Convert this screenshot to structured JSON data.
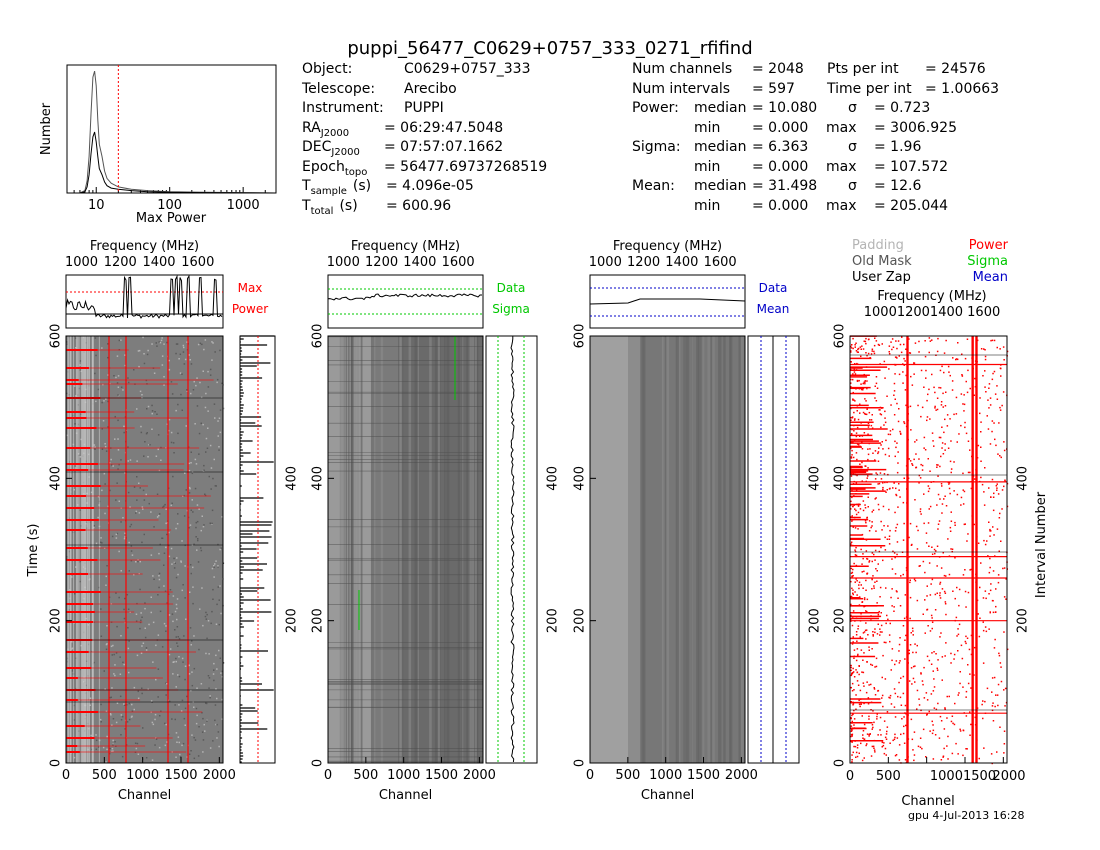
{
  "page_title": "puppi_56477_C0629+0757_333_0271_rfifind",
  "footer": "gpu   4-Jul-2013 16:28",
  "header_left": [
    {
      "label": "Object:",
      "value": "C0629+0757_333"
    },
    {
      "label": "Telescope:",
      "value": "Arecibo"
    },
    {
      "label": "Instrument:",
      "value": "PUPPI"
    },
    {
      "label": "RA",
      "sub": "J2000",
      "value": "= 06:29:47.5048"
    },
    {
      "label": "DEC",
      "sub": "J2000",
      "value": "= 07:57:07.1662"
    },
    {
      "label": "Epoch",
      "sub": "topo",
      "value": "= 56477.69737268519"
    },
    {
      "label": "T",
      "sub": "sample",
      "unit": "(s)",
      "value": "= 4.096e-05"
    },
    {
      "label": "T",
      "sub": "total",
      "unit": "(s)",
      "value": "= 600.96"
    }
  ],
  "header_right": [
    {
      "a": "Num channels",
      "b": "= 2048",
      "c": "Pts per int",
      "d": "= 24576"
    },
    {
      "a": "Num intervals",
      "b": "= 597",
      "c": "Time per int",
      "d": "= 1.00663"
    },
    {
      "a": "Power:",
      "a2": "median",
      "b": "= 10.080",
      "c": "σ",
      "d": "= 0.723"
    },
    {
      "a": "",
      "a2": "min",
      "b": "= 0.000",
      "c": "max",
      "d": "= 3006.925"
    },
    {
      "a": "Sigma:",
      "a2": "median",
      "b": "= 6.363",
      "c": "σ",
      "d": "= 1.96"
    },
    {
      "a": "",
      "a2": "min",
      "b": "= 0.000",
      "c": "max",
      "d": "= 107.572"
    },
    {
      "a": "Mean:",
      "a2": "median",
      "b": "= 31.498",
      "c": "σ",
      "d": "= 12.6"
    },
    {
      "a": "",
      "a2": "min",
      "b": "= 0.000",
      "c": "max",
      "d": "= 205.044"
    }
  ],
  "legend": {
    "padding": "Padding",
    "old_mask": "Old Mask",
    "user_zap": "User Zap",
    "power": "Power",
    "sigma": "Sigma",
    "mean": "Mean",
    "colors": {
      "padding": "#b4b4b4",
      "power": "#ff0000",
      "sigma": "#00c800",
      "mean": "#0000c8",
      "grey": "#888888"
    }
  },
  "side_labels": {
    "max": "Max",
    "power": "Power",
    "data": "Data",
    "sigma": "Sigma",
    "mean": "Mean"
  },
  "chart_data": [
    {
      "type": "line",
      "id": "max-power-histogram",
      "xlabel": "Max Power",
      "ylabel": "Number",
      "xscale": "log",
      "xlim": [
        4,
        2800
      ],
      "xticks": [
        10,
        100,
        1000
      ],
      "threshold_line": 20,
      "x": [
        6,
        7,
        7.5,
        8,
        8.5,
        9,
        9.5,
        10,
        10.5,
        11,
        12,
        13,
        14,
        16,
        20,
        30,
        50,
        100,
        300,
        1000,
        2800
      ],
      "series": [
        {
          "values": [
            0,
            2,
            10,
            30,
            65,
            95,
            100,
            88,
            60,
            40,
            30,
            18,
            12,
            8,
            5,
            3,
            2,
            1,
            0.6,
            0.3,
            0
          ]
        },
        {
          "values": [
            0,
            1,
            5,
            15,
            32,
            46,
            50,
            42,
            30,
            20,
            15,
            9,
            6,
            4,
            3,
            2,
            1,
            0.6,
            0.3,
            0.1,
            0
          ]
        }
      ]
    },
    {
      "type": "heatmap",
      "id": "max-power-panel",
      "xlabel": "Channel",
      "ylabel": "Time (s)",
      "xticks": [
        0,
        500,
        1000,
        1500,
        2000
      ],
      "yticks": [
        0,
        200,
        400,
        600
      ],
      "freq_label": "Frequency (MHz)",
      "freq_ticks": [
        1000,
        1200,
        1400,
        1600
      ],
      "side_yticks": [
        200,
        400
      ]
    },
    {
      "type": "heatmap",
      "id": "sigma-panel",
      "xlabel": "Channel",
      "xticks": [
        0,
        500,
        1000,
        1500,
        2000
      ],
      "yticks": [
        0,
        200,
        400,
        600
      ],
      "freq_label": "Frequency (MHz)",
      "freq_ticks": [
        1000,
        1200,
        1400,
        1600
      ],
      "side_yticks": [
        200,
        400
      ]
    },
    {
      "type": "heatmap",
      "id": "mean-panel",
      "xlabel": "Channel",
      "xticks": [
        0,
        500,
        1000,
        1500,
        2000
      ],
      "yticks": [
        0,
        200,
        400,
        600
      ],
      "freq_label": "Frequency (MHz)",
      "freq_ticks": [
        1000,
        1200,
        1400,
        1600
      ],
      "side_yticks": [
        200,
        400
      ]
    },
    {
      "type": "heatmap",
      "id": "mask-panel",
      "xlabel": "Channel",
      "ylabel": "Interval Number",
      "xticks": [
        0,
        500,
        1000,
        1500,
        2000
      ],
      "xtick_labels": [
        "0",
        "500",
        "1000",
        "1500",
        "2000"
      ],
      "yticks": [
        0,
        200,
        400,
        600
      ],
      "right_yticks": [
        200,
        400
      ],
      "freq_label": "Frequency (MHz)",
      "freq_ticks_text": "100012001400 1600",
      "zapped_channels": [
        750,
        1600,
        1650
      ],
      "zapped_intervals": [
        70,
        200,
        260,
        290,
        395,
        560
      ]
    }
  ]
}
